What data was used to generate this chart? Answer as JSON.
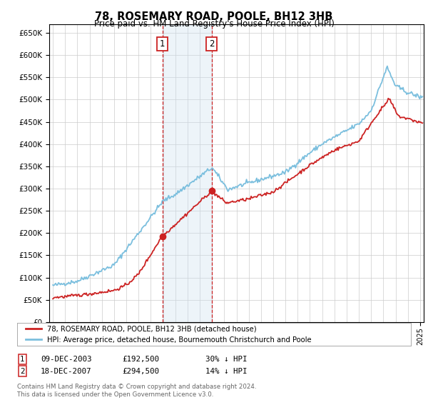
{
  "title": "78, ROSEMARY ROAD, POOLE, BH12 3HB",
  "subtitle": "Price paid vs. HM Land Registry's House Price Index (HPI)",
  "ylim": [
    0,
    670000
  ],
  "yticks": [
    0,
    50000,
    100000,
    150000,
    200000,
    250000,
    300000,
    350000,
    400000,
    450000,
    500000,
    550000,
    600000,
    650000
  ],
  "xlim_start": 1994.7,
  "xlim_end": 2025.3,
  "sale1_date": 2003.94,
  "sale1_price": 192500,
  "sale2_date": 2007.96,
  "sale2_price": 294500,
  "hpi_color": "#7bbfde",
  "price_color": "#cc2222",
  "annotation_box_color": "#cc2222",
  "shade_color": "#cce0f0",
  "legend_label_price": "78, ROSEMARY ROAD, POOLE, BH12 3HB (detached house)",
  "legend_label_hpi": "HPI: Average price, detached house, Bournemouth Christchurch and Poole",
  "table_row1": [
    "1",
    "09-DEC-2003",
    "£192,500",
    "30% ↓ HPI"
  ],
  "table_row2": [
    "2",
    "18-DEC-2007",
    "£294,500",
    "14% ↓ HPI"
  ],
  "footer": "Contains HM Land Registry data © Crown copyright and database right 2024.\nThis data is licensed under the Open Government Licence v3.0.",
  "background_color": "#ffffff",
  "grid_color": "#cccccc"
}
